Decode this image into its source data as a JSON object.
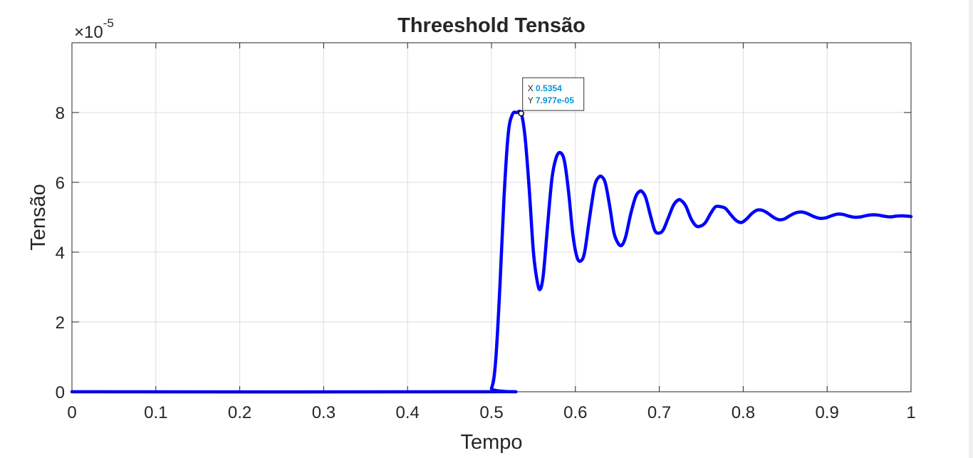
{
  "chart_data": {
    "type": "line",
    "title": "Threeshold Tensão",
    "xlabel": "Tempo",
    "ylabel": "Tensão",
    "exponent_label": "×10",
    "exponent_power": "-5",
    "exponent_scale": 1e-05,
    "xlim": [
      0,
      1
    ],
    "ylim": [
      0,
      0.0001
    ],
    "grid": true,
    "x_ticks": [
      0,
      0.1,
      0.2,
      0.3,
      0.4,
      0.5,
      0.6,
      0.7,
      0.8,
      0.9,
      1
    ],
    "x_tick_labels": [
      "0",
      "0.1",
      "0.2",
      "0.3",
      "0.4",
      "0.5",
      "0.6",
      "0.7",
      "0.8",
      "0.9",
      "1"
    ],
    "y_ticks": [
      0,
      2e-05,
      4e-05,
      6e-05,
      8e-05
    ],
    "y_tick_labels": [
      "0",
      "2",
      "4",
      "6",
      "8"
    ],
    "series": [
      {
        "name": "Tensão",
        "color": "#0000ff",
        "x": [
          0,
          0.49,
          0.5,
          0.505,
          0.51,
          0.515,
          0.52,
          0.525,
          0.53,
          0.5354,
          0.54,
          0.545,
          0.55,
          0.555,
          0.5585,
          0.562,
          0.567,
          0.572,
          0.577,
          0.582,
          0.587,
          0.592,
          0.597,
          0.602,
          0.6065,
          0.611,
          0.617,
          0.623,
          0.628,
          0.632,
          0.636,
          0.641,
          0.646,
          0.651,
          0.6555,
          0.66,
          0.666,
          0.672,
          0.677,
          0.68,
          0.684,
          0.69,
          0.695,
          0.7005,
          0.705,
          0.711,
          0.717,
          0.723,
          0.7275,
          0.732,
          0.738,
          0.744,
          0.7495,
          0.755,
          0.761,
          0.767,
          0.7735,
          0.779,
          0.786,
          0.792,
          0.798,
          0.804,
          0.81,
          0.816,
          0.8225,
          0.829,
          0.836,
          0.8425,
          0.849,
          0.856,
          0.863,
          0.87,
          0.877,
          0.884,
          0.891,
          0.898,
          0.905,
          0.912,
          0.919,
          0.926,
          0.933,
          0.94,
          0.947,
          0.954,
          0.961,
          0.968,
          0.975,
          0.982,
          0.989,
          0.996,
          1.0
        ],
        "y": [
          0,
          0,
          1e-06,
          9e-06,
          3e-05,
          5.6e-05,
          7.4e-05,
          7.95e-05,
          8e-05,
          7.977e-05,
          7.3e-05,
          5.8e-05,
          4e-05,
          3.1e-05,
          2.95e-05,
          3.4e-05,
          4.8e-05,
          6.1e-05,
          6.7e-05,
          6.85e-05,
          6.6e-05,
          5.7e-05,
          4.5e-05,
          3.85e-05,
          3.75e-05,
          4e-05,
          5e-05,
          5.9e-05,
          6.15e-05,
          6.15e-05,
          5.95e-05,
          5.3e-05,
          4.55e-05,
          4.25e-05,
          4.2e-05,
          4.45e-05,
          5.1e-05,
          5.6e-05,
          5.75e-05,
          5.72e-05,
          5.55e-05,
          5e-05,
          4.6e-05,
          4.55e-05,
          4.65e-05,
          5e-05,
          5.35e-05,
          5.5e-05,
          5.45e-05,
          5.3e-05,
          4.95e-05,
          4.75e-05,
          4.75e-05,
          4.85e-05,
          5.1e-05,
          5.3e-05,
          5.3e-05,
          5.25e-05,
          5.05e-05,
          4.9e-05,
          4.85e-05,
          4.95e-05,
          5.1e-05,
          5.2e-05,
          5.2e-05,
          5.12e-05,
          5e-05,
          4.93e-05,
          4.95e-05,
          5.05e-05,
          5.13e-05,
          5.15e-05,
          5.1e-05,
          5.02e-05,
          4.97e-05,
          4.98e-05,
          5.04e-05,
          5.09e-05,
          5.08e-05,
          5.03e-05,
          5e-05,
          5.01e-05,
          5.05e-05,
          5.07e-05,
          5.06e-05,
          5.03e-05,
          5.01e-05,
          5.03e-05,
          5.04e-05,
          5.03e-05,
          5.02e-05
        ]
      }
    ],
    "datatip": {
      "x_prefix": "X",
      "x_value": "0.5354",
      "y_prefix": "Y",
      "y_value": "7.977e-05",
      "at_x": 0.5354,
      "at_y": 7.977e-05
    }
  }
}
